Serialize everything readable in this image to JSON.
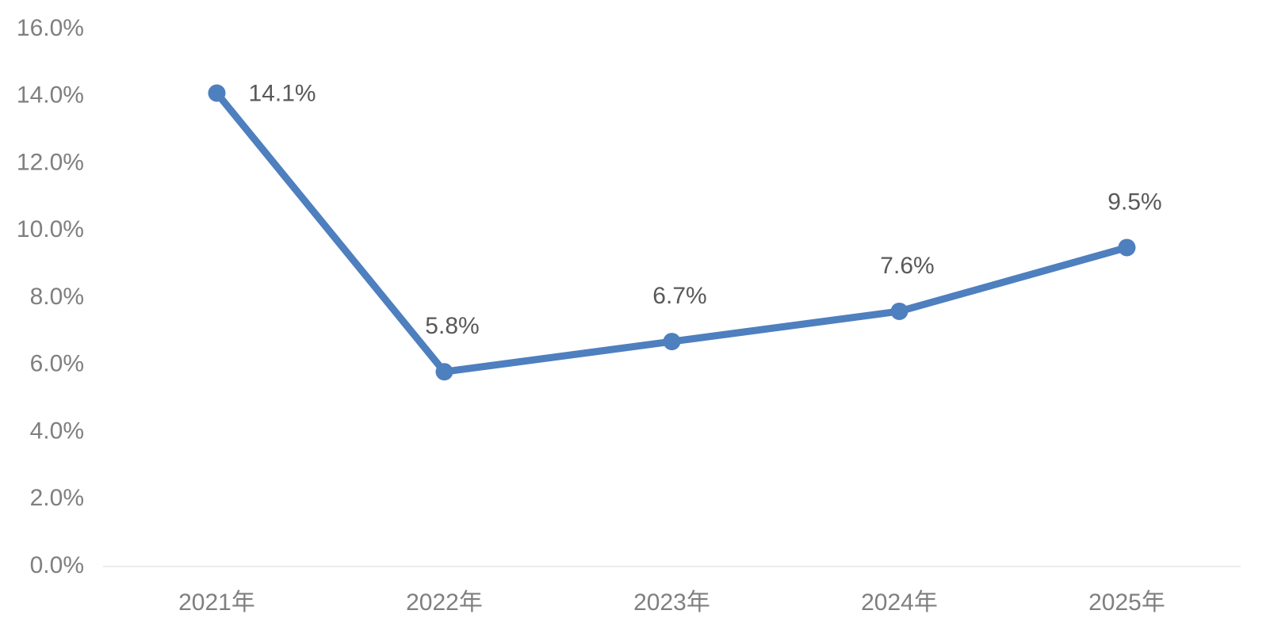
{
  "chart_data": {
    "type": "line",
    "categories": [
      "2021年",
      "2022年",
      "2023年",
      "2024年",
      "2025年"
    ],
    "series": [
      {
        "color": "#4e7fbe",
        "values": [
          14.1,
          5.8,
          6.7,
          7.6,
          9.5
        ],
        "value_labels": [
          "14.1%",
          "5.8%",
          "6.7%",
          "7.6%",
          "9.5%"
        ]
      }
    ],
    "ylim": [
      0,
      16
    ],
    "yticks": [
      {
        "value": 0,
        "label": "0.0%"
      },
      {
        "value": 2,
        "label": "2.0%"
      },
      {
        "value": 4,
        "label": "4.0%"
      },
      {
        "value": 6,
        "label": "6.0%"
      },
      {
        "value": 8,
        "label": "8.0%"
      },
      {
        "value": 10,
        "label": "10.0%"
      },
      {
        "value": 12,
        "label": "12.0%"
      },
      {
        "value": 14,
        "label": "14.0%"
      },
      {
        "value": 16,
        "label": "16.0%"
      }
    ],
    "grid": false
  }
}
